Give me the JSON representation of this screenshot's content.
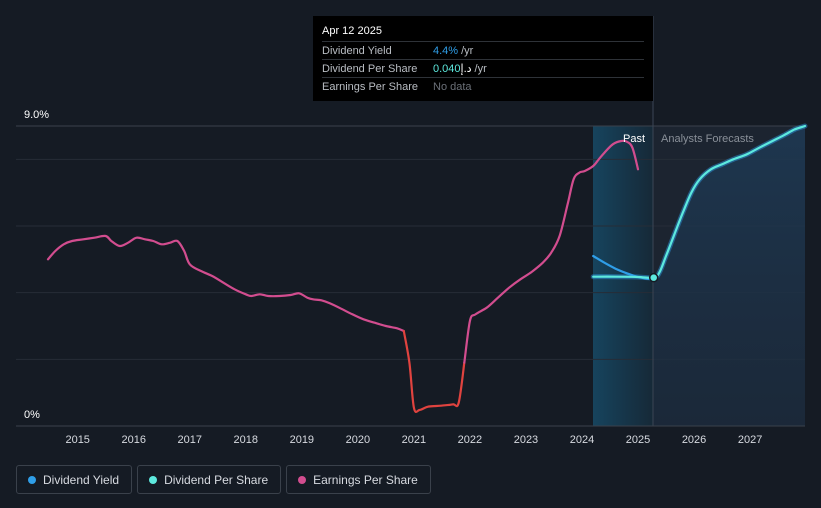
{
  "tooltip": {
    "date": "Apr 12 2025",
    "rows": [
      {
        "label": "Dividend Yield",
        "value": "4.4%",
        "unit": "/yr"
      },
      {
        "label": "Dividend Per Share",
        "value": "0.040",
        "currency": "د.إ",
        "unit": "/yr"
      },
      {
        "label": "Earnings Per Share",
        "value": "No data"
      }
    ]
  },
  "labels": {
    "past": "Past",
    "forecast": "Analysts Forecasts"
  },
  "colors": {
    "dividend_yield": "#2f9ee8",
    "dividend_per_share": "#5de9de",
    "earnings_per_share": "#d24d8f",
    "earnings_negative_dip": "#e0433f",
    "background": "#151b24"
  },
  "legend": [
    {
      "label": "Dividend Yield",
      "color": "#2f9ee8"
    },
    {
      "label": "Dividend Per Share",
      "color": "#5de9de"
    },
    {
      "label": "Earnings Per Share",
      "color": "#d24d8f"
    }
  ],
  "chart_data": {
    "type": "line",
    "y_ticks": [
      "9.0%",
      "0%"
    ],
    "ylim": [
      0,
      9.0
    ],
    "x_ticks": [
      "2015",
      "2016",
      "2017",
      "2018",
      "2019",
      "2020",
      "2021",
      "2022",
      "2023",
      "2024",
      "2025",
      "2026",
      "2027"
    ],
    "xlim": [
      2014.47,
      2027.98
    ],
    "past_region": [
      2024.2,
      2025.28
    ],
    "highlight_date": 2025.28,
    "series": [
      {
        "name": "Earnings Per Share",
        "key": "eps",
        "x": [
          2014.47,
          2014.6,
          2014.75,
          2014.9,
          2015.1,
          2015.3,
          2015.5,
          2015.6,
          2015.75,
          2015.9,
          2016.05,
          2016.2,
          2016.35,
          2016.5,
          2016.65,
          2016.78,
          2016.9,
          2017.0,
          2017.2,
          2017.4,
          2017.6,
          2017.8,
          2018.0,
          2018.1,
          2018.25,
          2018.4,
          2018.6,
          2018.8,
          2018.95,
          2019.1,
          2019.2,
          2019.35,
          2019.5,
          2019.7,
          2019.9,
          2020.1,
          2020.3,
          2020.5,
          2020.7,
          2020.82,
          2020.92,
          2021.0,
          2021.1,
          2021.25,
          2021.4,
          2021.55,
          2021.7,
          2021.8,
          2021.9,
          2022.0,
          2022.1,
          2022.3,
          2022.5,
          2022.7,
          2022.9,
          2023.1,
          2023.3,
          2023.45,
          2023.6,
          2023.75,
          2023.85,
          2023.95,
          2024.05,
          2024.2,
          2024.3,
          2024.4,
          2024.55,
          2024.7,
          2024.8,
          2024.9,
          2025.0
        ],
        "values": [
          5.0,
          5.25,
          5.45,
          5.55,
          5.6,
          5.65,
          5.7,
          5.55,
          5.4,
          5.5,
          5.65,
          5.6,
          5.55,
          5.45,
          5.5,
          5.55,
          5.25,
          4.85,
          4.65,
          4.5,
          4.3,
          4.1,
          3.95,
          3.9,
          3.95,
          3.9,
          3.9,
          3.93,
          3.98,
          3.85,
          3.8,
          3.77,
          3.68,
          3.52,
          3.35,
          3.2,
          3.1,
          3.0,
          2.93,
          2.85,
          1.9,
          0.55,
          0.48,
          0.58,
          0.6,
          0.62,
          0.65,
          0.7,
          1.9,
          3.15,
          3.35,
          3.55,
          3.85,
          4.15,
          4.4,
          4.62,
          4.9,
          5.2,
          5.7,
          6.7,
          7.4,
          7.6,
          7.65,
          7.8,
          8.0,
          8.2,
          8.45,
          8.55,
          8.53,
          8.35,
          7.7
        ],
        "dip_range": [
          2020.82,
          2021.9
        ]
      },
      {
        "name": "Dividend Yield",
        "key": "yield",
        "x": [
          2024.2,
          2024.4,
          2024.6,
          2024.8,
          2025.0,
          2025.15,
          2025.28
        ],
        "values": [
          5.1,
          4.9,
          4.72,
          4.58,
          4.47,
          4.42,
          4.4
        ]
      },
      {
        "name": "Dividend Per Share",
        "key": "dps",
        "x": [
          2024.2,
          2024.6,
          2025.0,
          2025.28,
          2025.38,
          2025.5,
          2025.65,
          2025.8,
          2025.95,
          2026.1,
          2026.3,
          2026.5,
          2026.7,
          2026.9,
          2027.0,
          2027.2,
          2027.4,
          2027.6,
          2027.8,
          2027.98
        ],
        "values": [
          4.48,
          4.48,
          4.47,
          4.45,
          4.6,
          5.1,
          5.75,
          6.4,
          7.0,
          7.4,
          7.7,
          7.85,
          8.0,
          8.12,
          8.2,
          8.38,
          8.55,
          8.72,
          8.9,
          9.0
        ]
      }
    ]
  }
}
